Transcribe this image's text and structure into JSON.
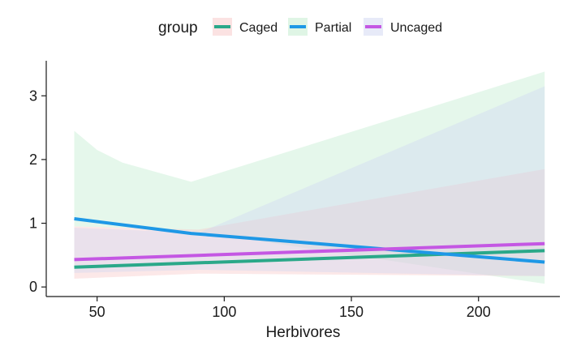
{
  "chart_data": {
    "type": "line",
    "xlabel": "Herbivores",
    "ylabel": "",
    "xlim": [
      30,
      232
    ],
    "ylim": [
      -0.15,
      3.55
    ],
    "xticks": [
      50,
      100,
      150,
      200
    ],
    "yticks": [
      0,
      1,
      2,
      3
    ],
    "grid": false,
    "legend": {
      "title": "group",
      "position": "top",
      "entries": [
        "Caged",
        "Partial",
        "Uncaged"
      ]
    },
    "series": [
      {
        "name": "Caged",
        "color": "#2aa889",
        "ribbon_color": "#f8c5c6",
        "x": [
          41,
          226
        ],
        "y": [
          0.31,
          0.57
        ],
        "ribbon": {
          "x": [
            41,
            90,
            226
          ],
          "lower": [
            0.13,
            0.21,
            0.17
          ],
          "upper": [
            0.95,
            0.9,
            1.85
          ]
        }
      },
      {
        "name": "Partial",
        "color": "#1e98e6",
        "ribbon_color": "#bfeccc",
        "x": [
          41,
          87,
          226
        ],
        "y": [
          1.07,
          0.84,
          0.39
        ],
        "ribbon": {
          "x": [
            41,
            50,
            60,
            87,
            226
          ],
          "lower": [
            0.95,
            0.94,
            0.93,
            0.88,
            0.05
          ],
          "upper": [
            2.45,
            2.15,
            1.95,
            1.65,
            3.38
          ]
        }
      },
      {
        "name": "Uncaged",
        "color": "#c457e3",
        "ribbon_color": "#cfd6f2",
        "x": [
          41,
          226
        ],
        "y": [
          0.43,
          0.68
        ],
        "ribbon": {
          "x": [
            41,
            90,
            226
          ],
          "lower": [
            0.22,
            0.27,
            0.17
          ],
          "upper": [
            0.93,
            0.85,
            3.15
          ]
        }
      }
    ]
  }
}
